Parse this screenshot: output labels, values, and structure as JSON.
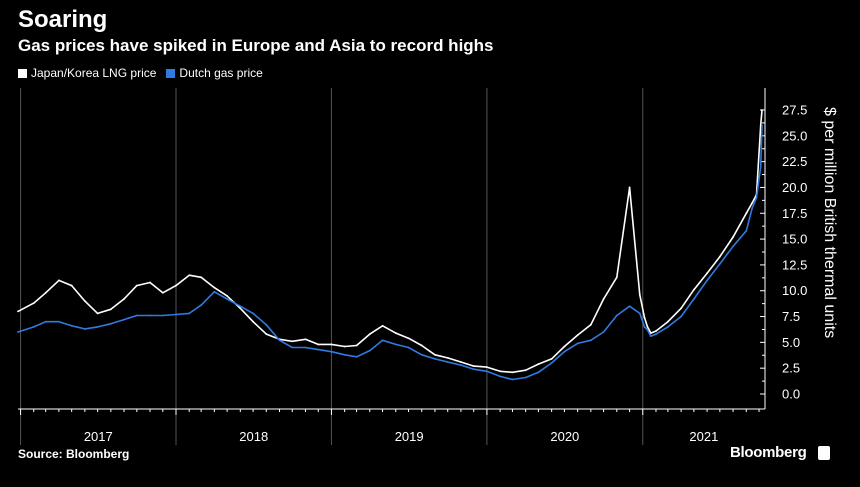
{
  "header": {
    "title": "Soaring",
    "subtitle": "Gas prices have spiked in Europe and Asia to record highs"
  },
  "footer": {
    "source": "Source: Bloomberg",
    "brand": "Bloomberg"
  },
  "colors": {
    "background": "#000000",
    "japan_korea": "#ffffff",
    "dutch": "#2f7be0"
  },
  "chart_data": {
    "type": "line",
    "ylabel": "$ per million British thermal units",
    "ylim": [
      0,
      27.5
    ],
    "yticks": [
      0.0,
      2.5,
      5.0,
      7.5,
      10.0,
      12.5,
      15.0,
      17.5,
      20.0,
      22.5,
      25.0,
      27.5
    ],
    "ytick_labels": [
      "0.0",
      "2.5",
      "5.0",
      "7.5",
      "10.0",
      "12.5",
      "15.0",
      "17.5",
      "20.0",
      "22.5",
      "25.0",
      "27.5"
    ],
    "xlim": [
      "2016-12-26",
      "2021-10-15"
    ],
    "x_labels": [
      "2017",
      "2018",
      "2019",
      "2020",
      "2021"
    ],
    "x_label_dates": [
      "2017-01-01",
      "2018-01-01",
      "2019-01-01",
      "2020-01-01",
      "2021-01-01"
    ],
    "legend_position": "top-left",
    "grid": "vertical year separators",
    "series": [
      {
        "name": "Japan/Korea LNG price",
        "color": "#ffffff",
        "x": [
          "2016-12-26",
          "2017-02-01",
          "2017-03-01",
          "2017-04-01",
          "2017-05-01",
          "2017-06-01",
          "2017-07-01",
          "2017-08-01",
          "2017-09-01",
          "2017-10-01",
          "2017-11-01",
          "2017-12-01",
          "2018-01-01",
          "2018-02-01",
          "2018-03-01",
          "2018-04-01",
          "2018-05-01",
          "2018-06-01",
          "2018-07-01",
          "2018-08-01",
          "2018-09-01",
          "2018-10-01",
          "2018-11-01",
          "2018-12-01",
          "2019-01-01",
          "2019-02-01",
          "2019-03-01",
          "2019-04-01",
          "2019-05-01",
          "2019-06-01",
          "2019-07-01",
          "2019-08-01",
          "2019-09-01",
          "2019-10-01",
          "2019-11-01",
          "2019-12-01",
          "2020-01-01",
          "2020-02-01",
          "2020-03-01",
          "2020-04-01",
          "2020-05-01",
          "2020-06-01",
          "2020-07-01",
          "2020-08-01",
          "2020-09-01",
          "2020-10-01",
          "2020-11-01",
          "2020-12-01",
          "2020-12-25",
          "2021-01-05",
          "2021-01-12",
          "2021-01-20",
          "2021-02-01",
          "2021-03-01",
          "2021-04-01",
          "2021-05-01",
          "2021-06-01",
          "2021-07-01",
          "2021-08-01",
          "2021-09-01",
          "2021-09-15",
          "2021-09-25",
          "2021-10-05",
          "2021-10-08"
        ],
        "y": [
          8.0,
          8.8,
          9.8,
          11.0,
          10.5,
          9.0,
          7.8,
          8.2,
          9.2,
          10.5,
          10.8,
          9.8,
          10.5,
          11.5,
          11.3,
          10.3,
          9.5,
          8.3,
          7.0,
          5.8,
          5.3,
          5.1,
          5.3,
          4.8,
          4.8,
          4.6,
          4.7,
          5.8,
          6.6,
          5.9,
          5.4,
          4.7,
          3.8,
          3.5,
          3.1,
          2.7,
          2.6,
          2.2,
          2.1,
          2.3,
          2.9,
          3.4,
          4.6,
          5.7,
          6.7,
          9.2,
          11.3,
          20.0,
          9.6,
          7.4,
          6.5,
          5.9,
          6.1,
          7.0,
          8.3,
          10.1,
          11.7,
          13.3,
          15.2,
          17.5,
          18.5,
          19.3,
          26.0,
          27.5
        ]
      },
      {
        "name": "Dutch gas price",
        "color": "#2f7be0",
        "x": [
          "2016-12-26",
          "2017-02-01",
          "2017-03-01",
          "2017-04-01",
          "2017-05-01",
          "2017-06-01",
          "2017-07-01",
          "2017-08-01",
          "2017-09-01",
          "2017-10-01",
          "2017-11-01",
          "2017-12-01",
          "2018-01-01",
          "2018-02-01",
          "2018-03-01",
          "2018-04-01",
          "2018-05-01",
          "2018-06-01",
          "2018-07-01",
          "2018-08-01",
          "2018-09-01",
          "2018-10-01",
          "2018-11-01",
          "2018-12-01",
          "2019-01-01",
          "2019-02-01",
          "2019-03-01",
          "2019-04-01",
          "2019-05-01",
          "2019-06-01",
          "2019-07-01",
          "2019-08-01",
          "2019-09-01",
          "2019-10-01",
          "2019-11-01",
          "2019-12-01",
          "2020-01-01",
          "2020-02-01",
          "2020-03-01",
          "2020-04-01",
          "2020-05-01",
          "2020-06-01",
          "2020-07-01",
          "2020-08-01",
          "2020-09-01",
          "2020-10-01",
          "2020-11-01",
          "2020-12-01",
          "2020-12-25",
          "2021-01-05",
          "2021-01-12",
          "2021-01-20",
          "2021-02-01",
          "2021-03-01",
          "2021-04-01",
          "2021-05-01",
          "2021-06-01",
          "2021-07-01",
          "2021-08-01",
          "2021-09-01",
          "2021-09-15",
          "2021-09-25",
          "2021-10-05",
          "2021-10-08"
        ],
        "y": [
          6.0,
          6.5,
          7.0,
          7.0,
          6.6,
          6.3,
          6.5,
          6.8,
          7.2,
          7.6,
          7.6,
          7.6,
          7.7,
          7.8,
          8.6,
          9.9,
          9.2,
          8.5,
          7.8,
          6.7,
          5.2,
          4.5,
          4.5,
          4.3,
          4.1,
          3.8,
          3.6,
          4.2,
          5.2,
          4.8,
          4.5,
          3.8,
          3.4,
          3.1,
          2.8,
          2.4,
          2.2,
          1.7,
          1.4,
          1.6,
          2.1,
          3.0,
          4.1,
          4.9,
          5.2,
          6.0,
          7.6,
          8.5,
          7.8,
          6.5,
          6.2,
          5.6,
          5.8,
          6.5,
          7.5,
          9.2,
          11.0,
          12.6,
          14.3,
          15.8,
          18.0,
          19.0,
          22.0,
          26.0
        ]
      }
    ]
  }
}
